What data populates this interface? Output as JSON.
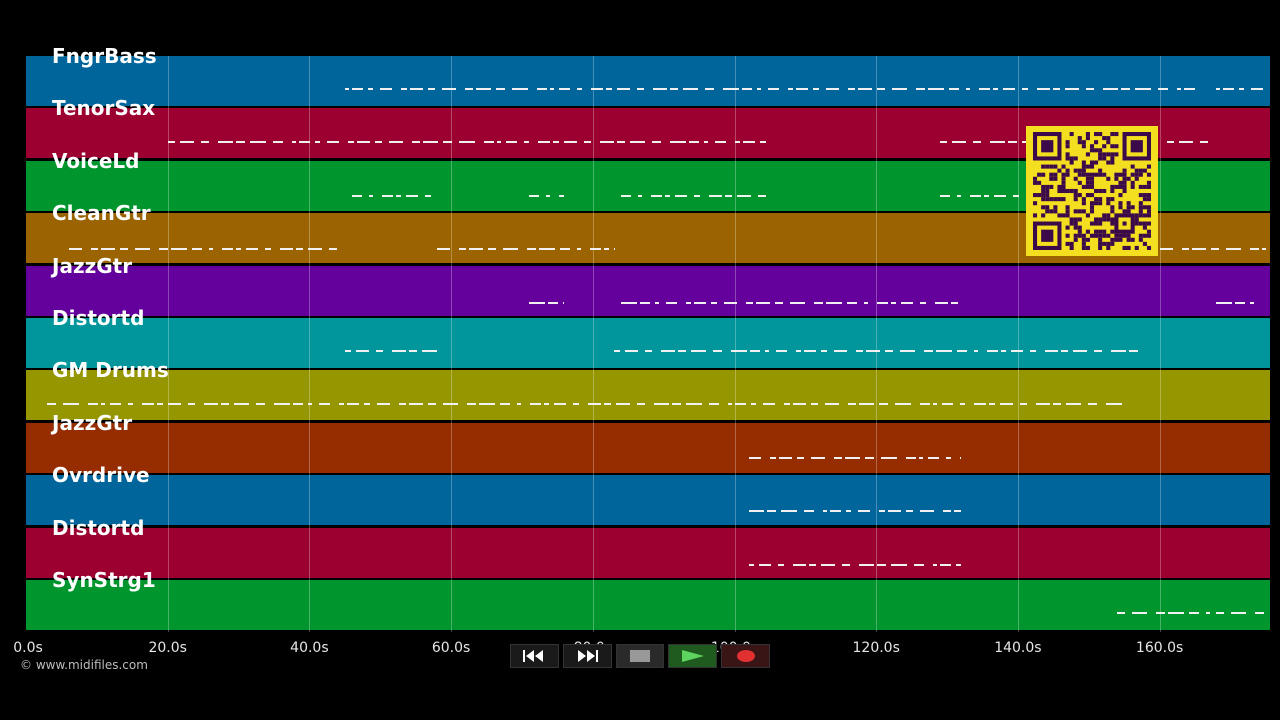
{
  "tracks": [
    {
      "name": "FngrBass",
      "color": "#00659b"
    },
    {
      "name": "TenorSax",
      "color": "#9b0030"
    },
    {
      "name": "VoiceLd",
      "color": "#00962d"
    },
    {
      "name": "CleanGtr",
      "color": "#9b6400"
    },
    {
      "name": "JazzGtr",
      "color": "#64009b"
    },
    {
      "name": "Distortd",
      "color": "#00969b"
    },
    {
      "name": "GM Drums",
      "color": "#969600"
    },
    {
      "name": "JazzGtr",
      "color": "#962d00"
    },
    {
      "name": "Ovrdrive",
      "color": "#00659b"
    },
    {
      "name": "Distortd",
      "color": "#9b0030"
    },
    {
      "name": "SynStrg1",
      "color": "#00962d"
    }
  ],
  "timeline": {
    "ticks": [
      "0.0s",
      "20.0s",
      "40.0s",
      "60.0s",
      "80.0s",
      "100.0s",
      "120.0s",
      "140.0s",
      "160.0s"
    ]
  },
  "copyright": "© www.midifiles.com",
  "transport": {
    "rewind_icon": "rewind-icon",
    "fastforward_icon": "fast-forward-icon",
    "stop_icon": "stop-icon",
    "play_icon": "play-icon",
    "record_icon": "record-icon"
  },
  "qr": {
    "icon": "qr-code-icon",
    "accent": "#f4de20",
    "dark": "#3b0a4a"
  }
}
